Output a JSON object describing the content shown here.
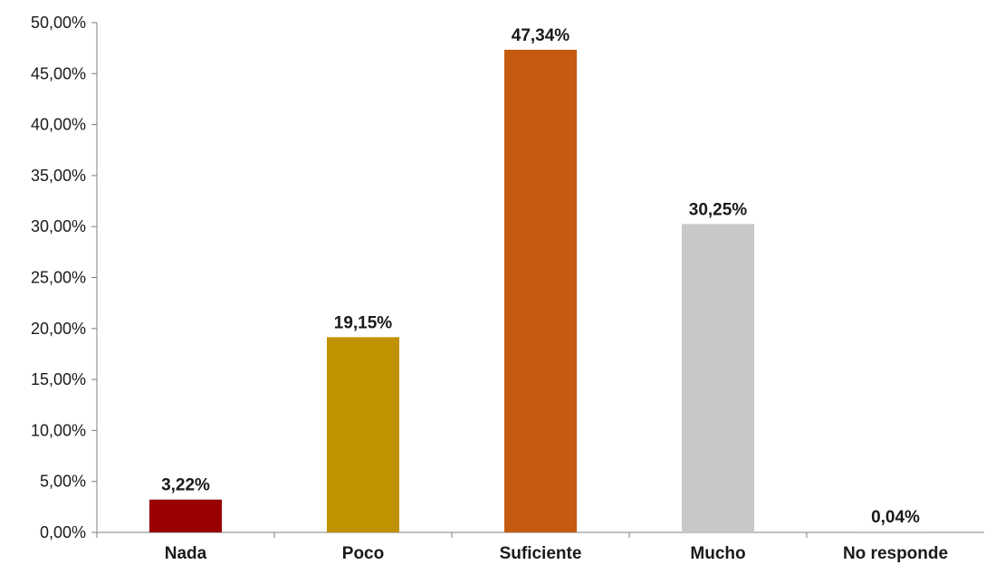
{
  "chart_data": {
    "type": "bar",
    "categories": [
      "Nada",
      "Poco",
      "Suficiente",
      "Mucho",
      "No responde"
    ],
    "values": [
      3.22,
      19.15,
      47.34,
      30.25,
      0.04
    ],
    "value_labels": [
      "3,22%",
      "19,15%",
      "47,34%",
      "30,25%",
      "0,04%"
    ],
    "colors": [
      "#990000",
      "#C09100",
      "#C55A11",
      "#C8C8C8",
      "#C8C8C8"
    ],
    "title": "",
    "xlabel": "",
    "ylabel": "",
    "ylim": [
      0,
      50
    ],
    "yticks": [
      0,
      5,
      10,
      15,
      20,
      25,
      30,
      35,
      40,
      45,
      50
    ],
    "ytick_labels": [
      "0,00%",
      "5,00%",
      "10,00%",
      "15,00%",
      "20,00%",
      "25,00%",
      "30,00%",
      "35,00%",
      "40,00%",
      "45,00%",
      "50,00%"
    ],
    "grid": false,
    "legend": "none",
    "axis_color": "#7f7f7f"
  }
}
